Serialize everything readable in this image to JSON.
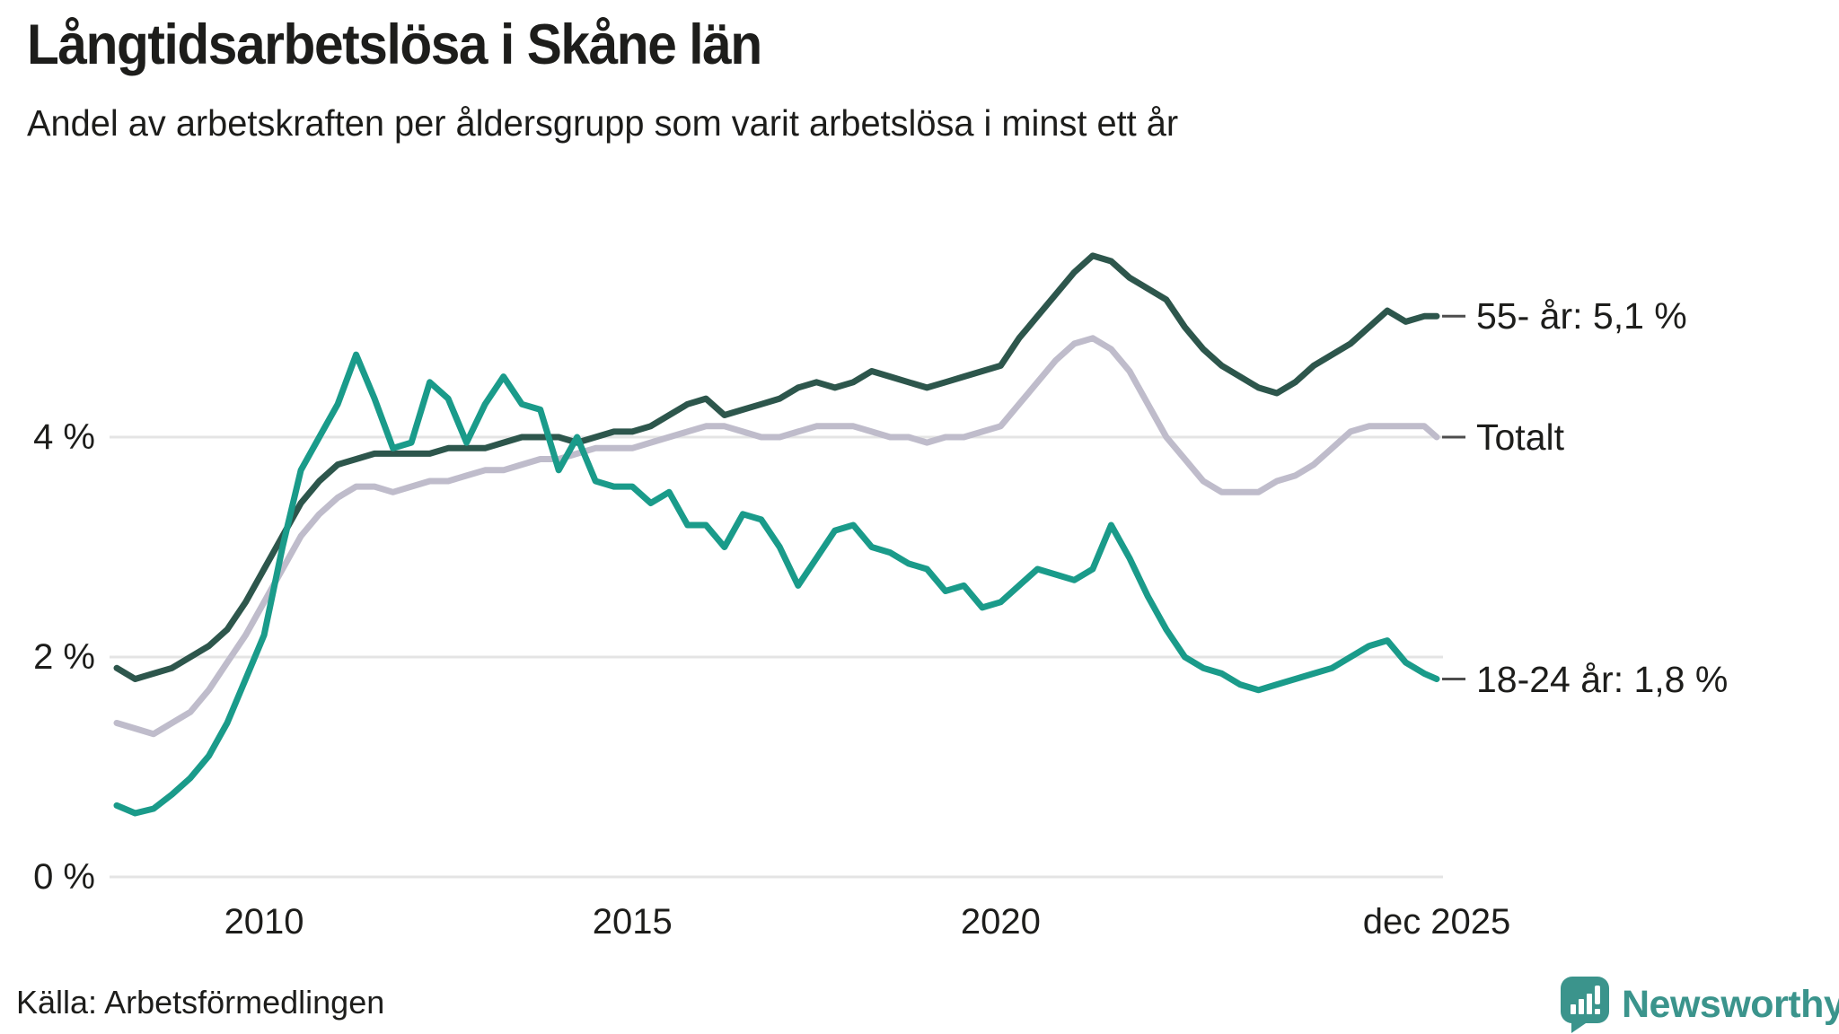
{
  "header": {
    "title": "Långtidsarbetslösa i Skåne län",
    "subtitle": "Andel av arbetskraften per åldersgrupp som varit arbetslösa i minst ett år"
  },
  "footer": {
    "source": "Källa: Arbetsförmedlingen",
    "brand": "Newsworthy"
  },
  "colors": {
    "text": "#1d1d1b",
    "grid": "#e4e4e4",
    "leader_dash": "#4d4d4d",
    "series_55": "#2d564c",
    "series_total": "#bfbccb",
    "series_18_24": "#1a9b8a",
    "logo_teal": "#3b948c",
    "background": "#ffffff"
  },
  "chart_data": {
    "type": "line",
    "title": "Långtidsarbetslösa i Skåne län",
    "subtitle": "Andel av arbetskraften per åldersgrupp som varit arbetslösa i minst ett år",
    "unit": "%",
    "grid": "horizontal",
    "legend_position": "right-end-labels",
    "xlim": [
      2008,
      2025.92
    ],
    "ylim": [
      0,
      6.1
    ],
    "yticks": [
      {
        "label": "0 %",
        "value": 0
      },
      {
        "label": "2 %",
        "value": 2
      },
      {
        "label": "4 %",
        "value": 4
      }
    ],
    "xticks": [
      {
        "label": "2010",
        "t": 2010
      },
      {
        "label": "2015",
        "t": 2015
      },
      {
        "label": "2020",
        "t": 2020
      },
      {
        "label": "dec 2025",
        "t": 2025.92
      }
    ],
    "x": [
      2008,
      2008.25,
      2008.5,
      2008.75,
      2009,
      2009.25,
      2009.5,
      2009.75,
      2010,
      2010.25,
      2010.5,
      2010.75,
      2011,
      2011.25,
      2011.5,
      2011.75,
      2012,
      2012.25,
      2012.5,
      2012.75,
      2013,
      2013.25,
      2013.5,
      2013.75,
      2014,
      2014.25,
      2014.5,
      2014.75,
      2015,
      2015.25,
      2015.5,
      2015.75,
      2016,
      2016.25,
      2016.5,
      2016.75,
      2017,
      2017.25,
      2017.5,
      2017.75,
      2018,
      2018.25,
      2018.5,
      2018.75,
      2019,
      2019.25,
      2019.5,
      2019.75,
      2020,
      2020.25,
      2020.5,
      2020.75,
      2021,
      2021.25,
      2021.5,
      2021.75,
      2022,
      2022.25,
      2022.5,
      2022.75,
      2023,
      2023.25,
      2023.5,
      2023.75,
      2024,
      2024.25,
      2024.5,
      2024.75,
      2025,
      2025.25,
      2025.5,
      2025.75,
      2025.92
    ],
    "series": [
      {
        "name": "55- år",
        "end_label": "55- år: 5,1 %",
        "end_value_label": "5,1 %",
        "color": "#2d564c",
        "values": [
          1.9,
          1.8,
          1.85,
          1.9,
          2.0,
          2.1,
          2.25,
          2.5,
          2.8,
          3.1,
          3.4,
          3.6,
          3.75,
          3.8,
          3.85,
          3.85,
          3.85,
          3.85,
          3.9,
          3.9,
          3.9,
          3.95,
          4.0,
          4.0,
          4.0,
          3.95,
          4.0,
          4.05,
          4.05,
          4.1,
          4.2,
          4.3,
          4.35,
          4.2,
          4.25,
          4.3,
          4.35,
          4.45,
          4.5,
          4.45,
          4.5,
          4.6,
          4.55,
          4.5,
          4.45,
          4.5,
          4.55,
          4.6,
          4.65,
          4.9,
          5.1,
          5.3,
          5.5,
          5.65,
          5.6,
          5.45,
          5.35,
          5.25,
          5.0,
          4.8,
          4.65,
          4.55,
          4.45,
          4.4,
          4.5,
          4.65,
          4.75,
          4.85,
          5.0,
          5.15,
          5.05,
          5.1,
          5.1
        ]
      },
      {
        "name": "Totalt",
        "end_label": "Totalt",
        "end_value_label": "",
        "color": "#bfbccb",
        "values": [
          1.4,
          1.35,
          1.3,
          1.4,
          1.5,
          1.7,
          1.95,
          2.2,
          2.5,
          2.8,
          3.1,
          3.3,
          3.45,
          3.55,
          3.55,
          3.5,
          3.55,
          3.6,
          3.6,
          3.65,
          3.7,
          3.7,
          3.75,
          3.8,
          3.8,
          3.85,
          3.9,
          3.9,
          3.9,
          3.95,
          4.0,
          4.05,
          4.1,
          4.1,
          4.05,
          4.0,
          4.0,
          4.05,
          4.1,
          4.1,
          4.1,
          4.05,
          4.0,
          4.0,
          3.95,
          4.0,
          4.0,
          4.05,
          4.1,
          4.3,
          4.5,
          4.7,
          4.85,
          4.9,
          4.8,
          4.6,
          4.3,
          4.0,
          3.8,
          3.6,
          3.5,
          3.5,
          3.5,
          3.6,
          3.65,
          3.75,
          3.9,
          4.05,
          4.1,
          4.1,
          4.1,
          4.1,
          4.0
        ]
      },
      {
        "name": "18-24 år",
        "end_label": "18-24 år: 1,8 %",
        "end_value_label": "1,8 %",
        "color": "#1a9b8a",
        "values": [
          0.65,
          0.58,
          0.62,
          0.75,
          0.9,
          1.1,
          1.4,
          1.8,
          2.2,
          3.0,
          3.7,
          4.0,
          4.3,
          4.75,
          4.35,
          3.9,
          3.95,
          4.5,
          4.35,
          3.95,
          4.3,
          4.55,
          4.3,
          4.25,
          3.7,
          4.0,
          3.6,
          3.55,
          3.55,
          3.4,
          3.5,
          3.2,
          3.2,
          3.0,
          3.3,
          3.25,
          3.0,
          2.65,
          2.9,
          3.15,
          3.2,
          3.0,
          2.95,
          2.85,
          2.8,
          2.6,
          2.65,
          2.45,
          2.5,
          2.65,
          2.8,
          2.75,
          2.7,
          2.8,
          3.2,
          2.9,
          2.55,
          2.25,
          2.0,
          1.9,
          1.85,
          1.75,
          1.7,
          1.75,
          1.8,
          1.85,
          1.9,
          2.0,
          2.1,
          2.15,
          1.95,
          1.85,
          1.8
        ]
      }
    ]
  }
}
